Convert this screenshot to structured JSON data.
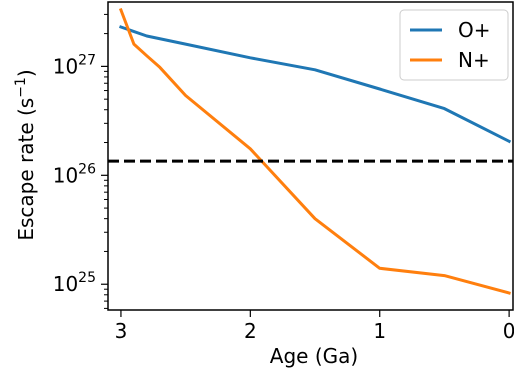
{
  "chart_data": {
    "type": "line",
    "title": "",
    "xlabel": "Age (Ga)",
    "ylabel_main": "Escape rate (s",
    "ylabel_sup": "−1",
    "ylabel_close": ")",
    "x_reversed": true,
    "xlim": [
      3.1,
      -0.03
    ],
    "ylim": [
      5.8e+24,
      3.9e+27
    ],
    "yscale": "log",
    "xticks": [
      {
        "value": 3,
        "label": "3"
      },
      {
        "value": 2,
        "label": "2"
      },
      {
        "value": 1,
        "label": "1"
      },
      {
        "value": 0,
        "label": "0"
      }
    ],
    "yticks": [
      {
        "value": 1e+25,
        "base": "10",
        "exp": "25"
      },
      {
        "value": 1e+26,
        "base": "10",
        "exp": "26"
      },
      {
        "value": 1e+27,
        "base": "10",
        "exp": "27"
      }
    ],
    "series": [
      {
        "name": "O+",
        "color": "#1f77b4",
        "points": [
          [
            3.0,
            2.3e+27
          ],
          [
            2.8,
            1.9e+27
          ],
          [
            2.5,
            1.6e+27
          ],
          [
            2.0,
            1.2e+27
          ],
          [
            1.5,
            9.3e+26
          ],
          [
            1.0,
            6.2e+26
          ],
          [
            0.5,
            4.1e+26
          ],
          [
            0.0,
            2.05e+26
          ]
        ]
      },
      {
        "name": "N+",
        "color": "#ff7f0e",
        "points": [
          [
            3.0,
            3.3e+27
          ],
          [
            2.9,
            1.6e+27
          ],
          [
            2.8,
            1.25e+27
          ],
          [
            2.7,
            9.8e+26
          ],
          [
            2.5,
            5.4e+26
          ],
          [
            2.0,
            1.75e+26
          ],
          [
            1.5,
            4e+25
          ],
          [
            1.0,
            1.4e+25
          ],
          [
            0.5,
            1.2e+25
          ],
          [
            0.0,
            8.3e+24
          ]
        ]
      }
    ],
    "hline": {
      "y": 1.35e+26,
      "style": "dashed",
      "color": "#000000"
    },
    "legend": {
      "position": "top-right"
    },
    "grid": false
  }
}
